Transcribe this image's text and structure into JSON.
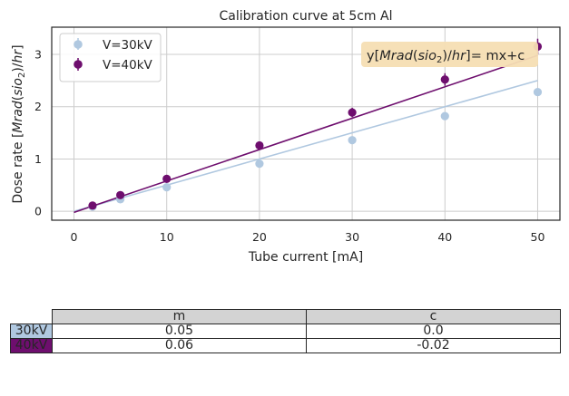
{
  "chart_data": {
    "type": "scatter",
    "title": "Calibration curve at 5cm Al",
    "xlabel": "Tube current [mA]",
    "ylabel": "Dose rate [Mrad(sio₂)/hr]",
    "xlim": [
      -2.4,
      52.4
    ],
    "ylim": [
      -0.17,
      3.52
    ],
    "xticks": [
      0,
      10,
      20,
      30,
      40,
      50
    ],
    "yticks": [
      0,
      1,
      2,
      3
    ],
    "grid": true,
    "legend_position": "top-left",
    "annotation": "y[Mrad(sio₂)/hr]= mx+c",
    "series": [
      {
        "name": "V=30kV",
        "color": "#b0c8e0",
        "x": [
          2,
          5,
          10,
          20,
          30,
          40,
          50
        ],
        "y": [
          0.09,
          0.23,
          0.46,
          0.91,
          1.36,
          1.82,
          2.28
        ],
        "yerr": [
          0.01,
          0.02,
          0.03,
          0.04,
          0.05,
          0.06,
          0.07
        ],
        "fit": {
          "m": 0.05,
          "c": 0.0
        }
      },
      {
        "name": "V=40kV",
        "color": "#6e0e6e",
        "x": [
          2,
          5,
          10,
          20,
          30,
          40,
          50
        ],
        "y": [
          0.11,
          0.31,
          0.62,
          1.26,
          1.89,
          2.52,
          3.15
        ],
        "yerr": [
          0.01,
          0.03,
          0.05,
          0.06,
          0.09,
          0.12,
          0.15
        ],
        "fit": {
          "m": 0.06,
          "c": -0.02
        }
      }
    ],
    "table": {
      "columns": [
        "m",
        "c"
      ],
      "rows": [
        {
          "label": "30kV",
          "color": "#b0c8e0",
          "values": [
            "0.05",
            "0.0"
          ]
        },
        {
          "label": "40kV",
          "color": "#6e0e6e",
          "values": [
            "0.06",
            "-0.02"
          ]
        }
      ]
    }
  }
}
